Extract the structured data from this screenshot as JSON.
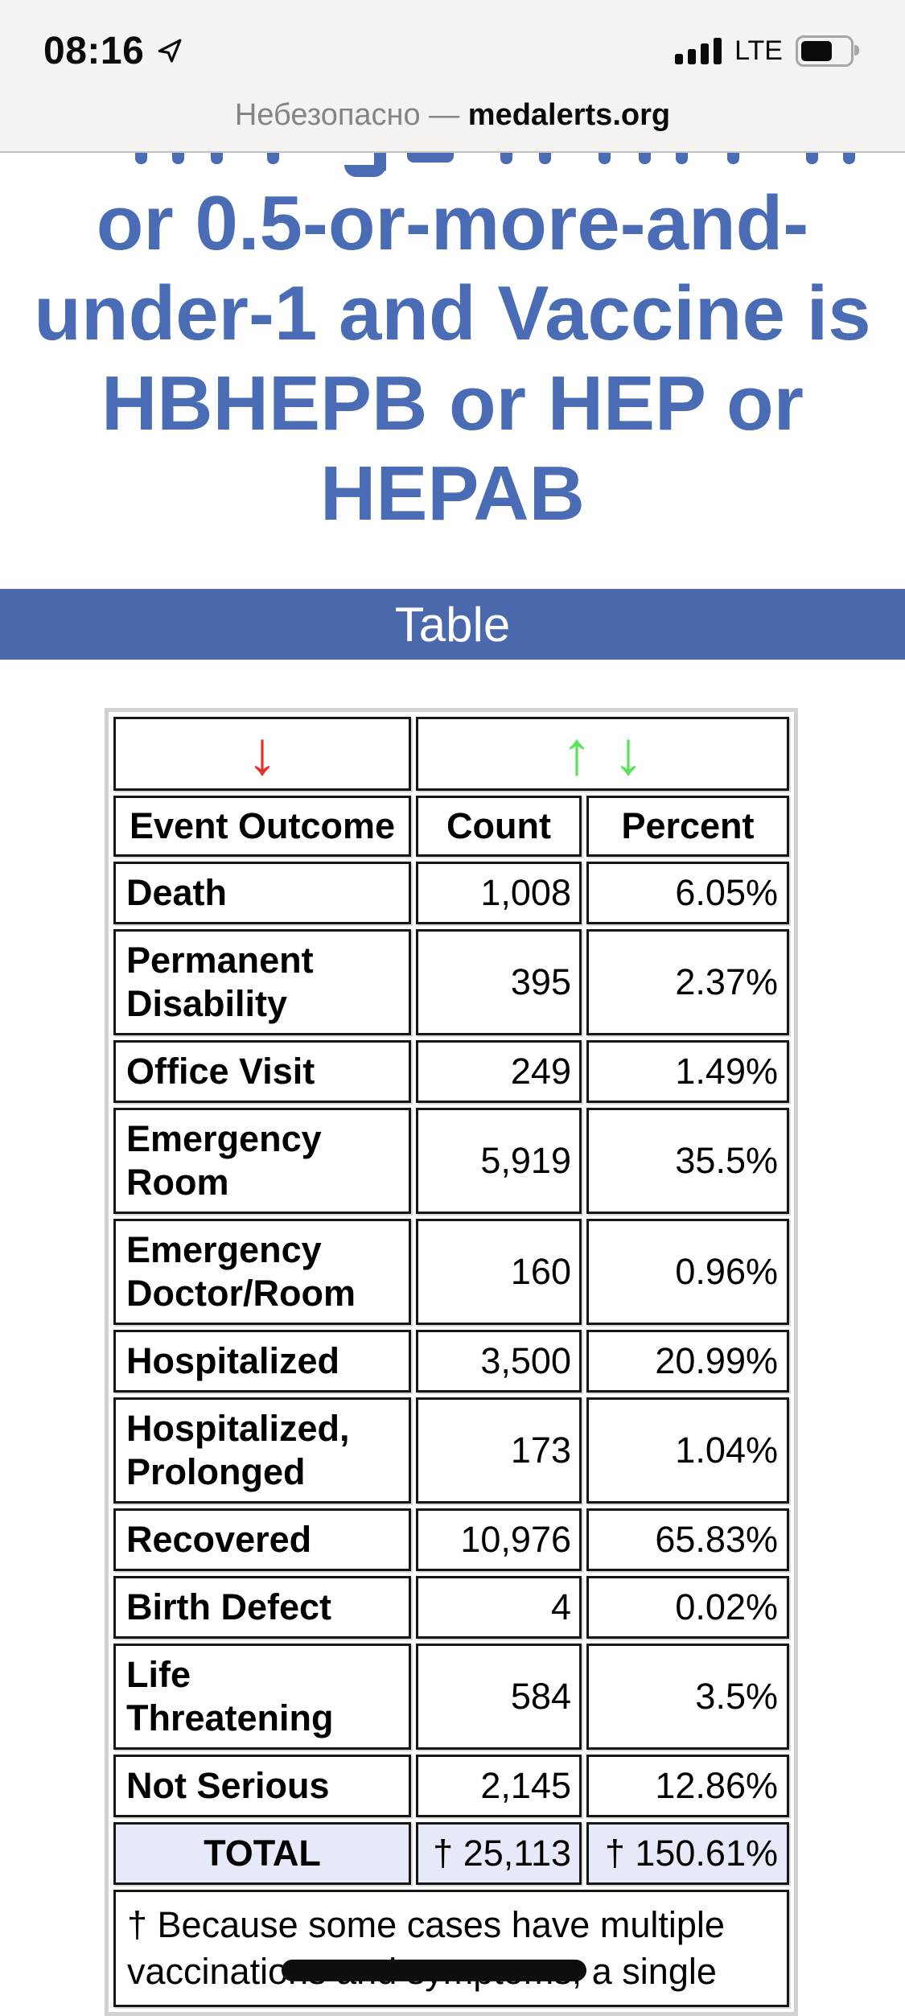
{
  "status_bar": {
    "time": "08:16",
    "network": "LTE"
  },
  "url_bar": {
    "security_label": "Небезопасно",
    "separator": " — ",
    "domain": "medalerts.org"
  },
  "heading": {
    "visible_lines": [
      "or 0.5-or-more-and-",
      "under-1 and Vaccine is",
      "HBHEPB or HEP or",
      "HEPAB"
    ]
  },
  "banner": {
    "title": "Table"
  },
  "icons": {
    "down_arrow": "↓",
    "up_arrow": "↑"
  },
  "results_table": {
    "columns": {
      "outcome": "Event Outcome",
      "count": "Count",
      "percent": "Percent"
    },
    "rows": [
      {
        "outcome": "Death",
        "count": "1,008",
        "percent": "6.05%"
      },
      {
        "outcome": "Permanent Disability",
        "count": "395",
        "percent": "2.37%"
      },
      {
        "outcome": "Office Visit",
        "count": "249",
        "percent": "1.49%"
      },
      {
        "outcome": "Emergency Room",
        "count": "5,919",
        "percent": "35.5%"
      },
      {
        "outcome": "Emergency Doctor/Room",
        "count": "160",
        "percent": "0.96%"
      },
      {
        "outcome": "Hospitalized",
        "count": "3,500",
        "percent": "20.99%"
      },
      {
        "outcome": "Hospitalized, Prolonged",
        "count": "173",
        "percent": "1.04%"
      },
      {
        "outcome": "Recovered",
        "count": "10,976",
        "percent": "65.83%"
      },
      {
        "outcome": "Birth Defect",
        "count": "4",
        "percent": "0.02%"
      },
      {
        "outcome": "Life Threatening",
        "count": "584",
        "percent": "3.5%"
      },
      {
        "outcome": "Not Serious",
        "count": "2,145",
        "percent": "12.86%"
      }
    ],
    "total": {
      "label": "TOTAL",
      "count": "† 25,113",
      "percent": "† 150.61%"
    },
    "footnote": {
      "text_pre": "† Because some cases have multiple vaccinatio",
      "text_struck": "ns and symptoms,",
      "text_post": " a single"
    }
  },
  "colors": {
    "heading_blue": "#4a6cb4",
    "banner_blue": "#4a69ac",
    "total_row_bg": "#e6eaf8",
    "sort_red": "#e2332a",
    "sort_green": "#57e457"
  }
}
